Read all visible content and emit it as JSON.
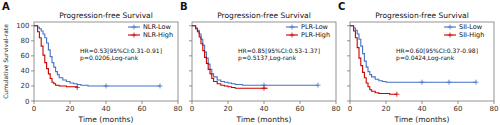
{
  "chart_data": [
    {
      "type": "step",
      "panel_label": "A",
      "title": "Progression-free Survival",
      "xlabel": "Time (months)",
      "ylabel": "Cumulative Survival-rate",
      "xlim": [
        0,
        80
      ],
      "ylim": [
        0,
        105
      ],
      "xticks": [
        0,
        20,
        40,
        60,
        80
      ],
      "yticks": [
        0,
        20,
        40,
        60,
        80,
        100
      ],
      "annotation": "HR=0.53[95%CI:0.31-0.91]\np=0.0206,Log-rank",
      "legend": "upper right",
      "grid": false,
      "series": [
        {
          "name": "NLR-Low",
          "color": "#4472C4",
          "x": [
            0,
            2,
            3,
            4,
            5,
            6,
            7,
            8,
            9,
            10,
            11,
            12,
            13,
            14,
            16,
            18,
            20,
            22,
            24,
            26,
            28,
            30,
            35,
            40,
            45,
            50,
            55,
            60,
            65,
            70
          ],
          "values": [
            100,
            98,
            96,
            93,
            89,
            84,
            77,
            68,
            59,
            51,
            45,
            39,
            35,
            31,
            28,
            26,
            24,
            23,
            22,
            21,
            21,
            20,
            20,
            20,
            20,
            20,
            20,
            20,
            20,
            20
          ],
          "censor_x": [
            40,
            70
          ],
          "censor_values": [
            20,
            20
          ]
        },
        {
          "name": "NLR-High",
          "color": "#CC0000",
          "x": [
            0,
            2,
            3,
            4,
            5,
            6,
            7,
            8,
            9,
            10,
            11,
            12,
            14,
            16,
            18,
            20,
            22,
            24
          ],
          "values": [
            100,
            92,
            84,
            73,
            61,
            51,
            43,
            36,
            30,
            25,
            23,
            21,
            20,
            20,
            19,
            19,
            19,
            18
          ],
          "censor_x": [
            24
          ],
          "censor_values": [
            18
          ]
        }
      ]
    },
    {
      "type": "step",
      "panel_label": "B",
      "title": "Progression-free Survival",
      "xlabel": "Time (months)",
      "xlim": [
        0,
        80
      ],
      "ylim": [
        0,
        105
      ],
      "xticks": [
        0,
        20,
        40,
        60,
        80
      ],
      "yticks": [
        0,
        20,
        40,
        60,
        80,
        100
      ],
      "annotation": "HR=0.85[95%CI:0.53-1.37]\np=0.5137,Log-rank",
      "legend": "upper right",
      "grid": false,
      "tick_labels": "x",
      "series": [
        {
          "name": "PLR-Low",
          "color": "#4472C4",
          "x": [
            0,
            2,
            3,
            4,
            5,
            6,
            7,
            8,
            9,
            10,
            11,
            12,
            14,
            16,
            18,
            20,
            22,
            24,
            26,
            28,
            30,
            35,
            40,
            45,
            50,
            55,
            60,
            65,
            70
          ],
          "values": [
            100,
            97,
            94,
            89,
            82,
            74,
            65,
            57,
            49,
            42,
            36,
            32,
            28,
            26,
            25,
            24,
            23,
            22,
            22,
            21,
            21,
            21,
            21,
            21,
            21,
            21,
            21,
            21,
            21
          ],
          "censor_x": [
            40,
            70
          ],
          "censor_values": [
            21,
            21
          ]
        },
        {
          "name": "PLR-High",
          "color": "#CC0000",
          "x": [
            0,
            2,
            3,
            4,
            5,
            6,
            7,
            8,
            9,
            10,
            11,
            12,
            14,
            16,
            18,
            20,
            22,
            24,
            26,
            28,
            30,
            35,
            40,
            42
          ],
          "values": [
            100,
            96,
            92,
            85,
            76,
            67,
            58,
            50,
            42,
            36,
            30,
            26,
            23,
            21,
            20,
            19,
            18,
            17,
            17,
            17,
            17,
            17,
            17,
            17
          ],
          "censor_x": [
            40
          ],
          "censor_values": [
            17
          ]
        }
      ]
    },
    {
      "type": "step",
      "panel_label": "C",
      "title": "Progression-free Survival",
      "xlabel": "Time (months)",
      "xlim": [
        0,
        80
      ],
      "ylim": [
        0,
        105
      ],
      "xticks": [
        0,
        20,
        40,
        60,
        80
      ],
      "yticks": [
        0,
        20,
        40,
        60,
        80,
        100
      ],
      "annotation": "HR=0.60[95%CI:0.37-0.98]\np=0.0424,Log-rank",
      "legend": "upper right",
      "grid": false,
      "tick_labels": "x",
      "series": [
        {
          "name": "SII-Low",
          "color": "#4472C4",
          "x": [
            0,
            2,
            3,
            4,
            5,
            6,
            7,
            8,
            9,
            10,
            11,
            12,
            14,
            16,
            18,
            20,
            22,
            24,
            26,
            28,
            30,
            35,
            40,
            45,
            50,
            55,
            60,
            65,
            70
          ],
          "values": [
            100,
            97,
            94,
            89,
            82,
            73,
            63,
            53,
            45,
            39,
            35,
            32,
            29,
            27,
            26,
            25,
            25,
            25,
            25,
            25,
            25,
            25,
            25,
            25,
            25,
            25,
            25,
            25,
            25
          ],
          "censor_x": [
            40,
            55,
            70
          ],
          "censor_values": [
            25,
            25,
            25
          ]
        },
        {
          "name": "SII-High",
          "color": "#CC0000",
          "x": [
            0,
            2,
            3,
            4,
            5,
            6,
            7,
            8,
            9,
            10,
            11,
            12,
            14,
            16,
            18,
            20,
            22,
            24,
            26
          ],
          "values": [
            100,
            93,
            84,
            71,
            57,
            47,
            38,
            31,
            24,
            19,
            15,
            13,
            11,
            10,
            10,
            10,
            9,
            9,
            9
          ],
          "censor_x": [
            26
          ],
          "censor_values": [
            9
          ]
        }
      ]
    }
  ]
}
